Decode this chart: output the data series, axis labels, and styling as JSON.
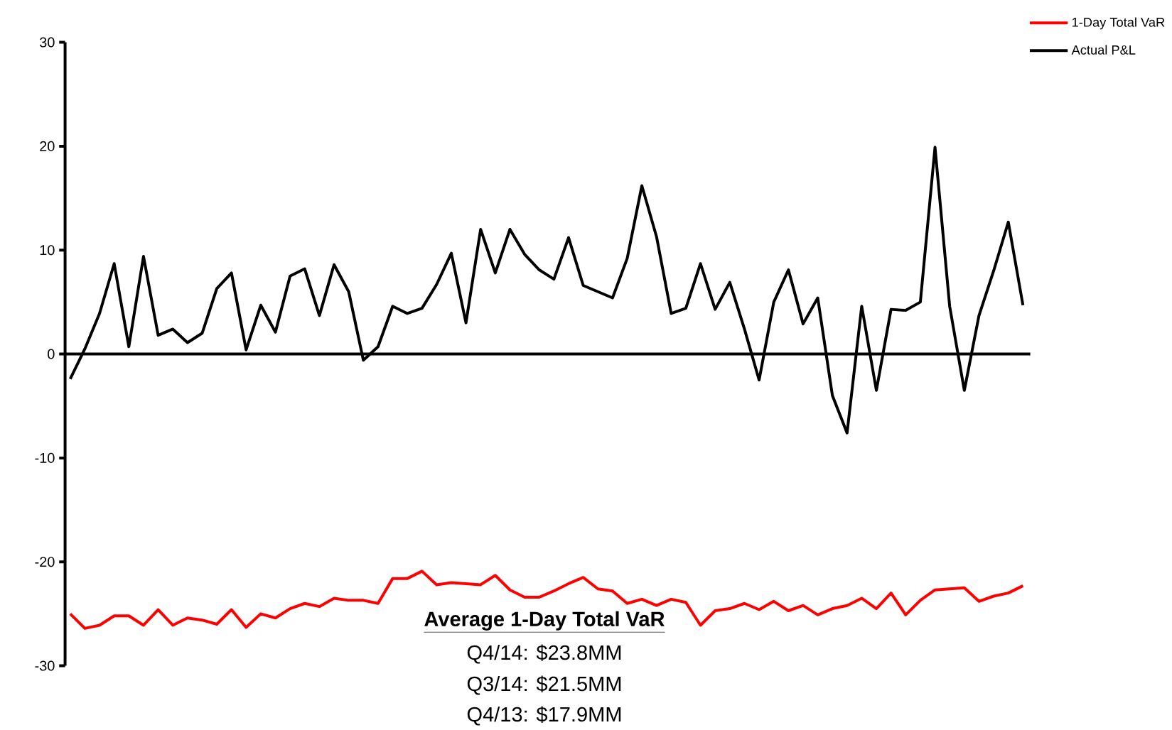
{
  "chart_data": {
    "type": "line",
    "categories": [
      null,
      null,
      null,
      null,
      null,
      null,
      null,
      null,
      null,
      null,
      null,
      null,
      null,
      null,
      null,
      null,
      null,
      null,
      null,
      null,
      null,
      null,
      null,
      null,
      null,
      null,
      null,
      null,
      null,
      null,
      null,
      null,
      null,
      null,
      null,
      null,
      null,
      null,
      null,
      null,
      null,
      null,
      null,
      null,
      null,
      null,
      null,
      null,
      null,
      null,
      null,
      null,
      null,
      null,
      null,
      null,
      null,
      null,
      null,
      null,
      null,
      null,
      null,
      null,
      null,
      null
    ],
    "series": [
      {
        "name": "1-Day Total VaR",
        "color": "#ff0000",
        "values": [
          -25.0,
          -26.4,
          -26.1,
          -25.2,
          -25.2,
          -26.1,
          -24.6,
          -26.1,
          -25.4,
          -25.6,
          -26.0,
          -24.6,
          -26.3,
          -25.0,
          -25.4,
          -24.5,
          -24.0,
          -24.3,
          -23.5,
          -23.7,
          -23.7,
          -24.0,
          -21.6,
          -21.6,
          -20.9,
          -22.2,
          -22.0,
          -22.1,
          -22.2,
          -21.3,
          -22.7,
          -23.4,
          -23.4,
          -22.8,
          -22.1,
          -21.5,
          -22.6,
          -22.8,
          -24.0,
          -23.6,
          -24.2,
          -23.6,
          -23.9,
          -26.1,
          -24.7,
          -24.5,
          -24.0,
          -24.6,
          -23.8,
          -24.7,
          -24.2,
          -25.1,
          -24.5,
          -24.2,
          -23.5,
          -24.5,
          -23.0,
          -25.1,
          -23.7,
          -22.7,
          -22.6,
          -22.5,
          -23.8,
          -23.3,
          -23.0,
          -22.3
        ]
      },
      {
        "name": "Actual P&L",
        "color": "#000000",
        "values": [
          -2.4,
          0.5,
          3.9,
          8.7,
          0.7,
          9.4,
          1.8,
          2.4,
          1.1,
          2.0,
          6.3,
          7.8,
          0.4,
          4.7,
          2.1,
          7.5,
          8.2,
          3.7,
          8.6,
          6.0,
          -0.6,
          0.7,
          4.6,
          3.9,
          4.4,
          6.7,
          9.7,
          3.0,
          12.0,
          7.8,
          12.0,
          9.6,
          8.1,
          7.2,
          11.2,
          6.6,
          6.0,
          5.4,
          9.2,
          16.2,
          11.3,
          3.9,
          4.4,
          8.7,
          4.3,
          6.9,
          2.4,
          -2.5,
          5.0,
          8.1,
          2.9,
          5.4,
          -4.0,
          -7.6,
          4.6,
          -3.5,
          4.3,
          4.2,
          5.0,
          19.9,
          4.6,
          -3.5,
          3.7,
          8.0,
          12.7,
          4.7
        ]
      }
    ],
    "ylim": [
      -30,
      30
    ],
    "yticks": [
      -30,
      -20,
      -10,
      0,
      10,
      20,
      30
    ],
    "legend": "top right",
    "marker": "none",
    "line_style": "solid",
    "annotations": [
      "Average 1-Day Total VaR",
      "Q4/14: $23.8MM",
      "Q3/14: $21.5MM",
      "Q4/13: $17.9MM"
    ]
  }
}
